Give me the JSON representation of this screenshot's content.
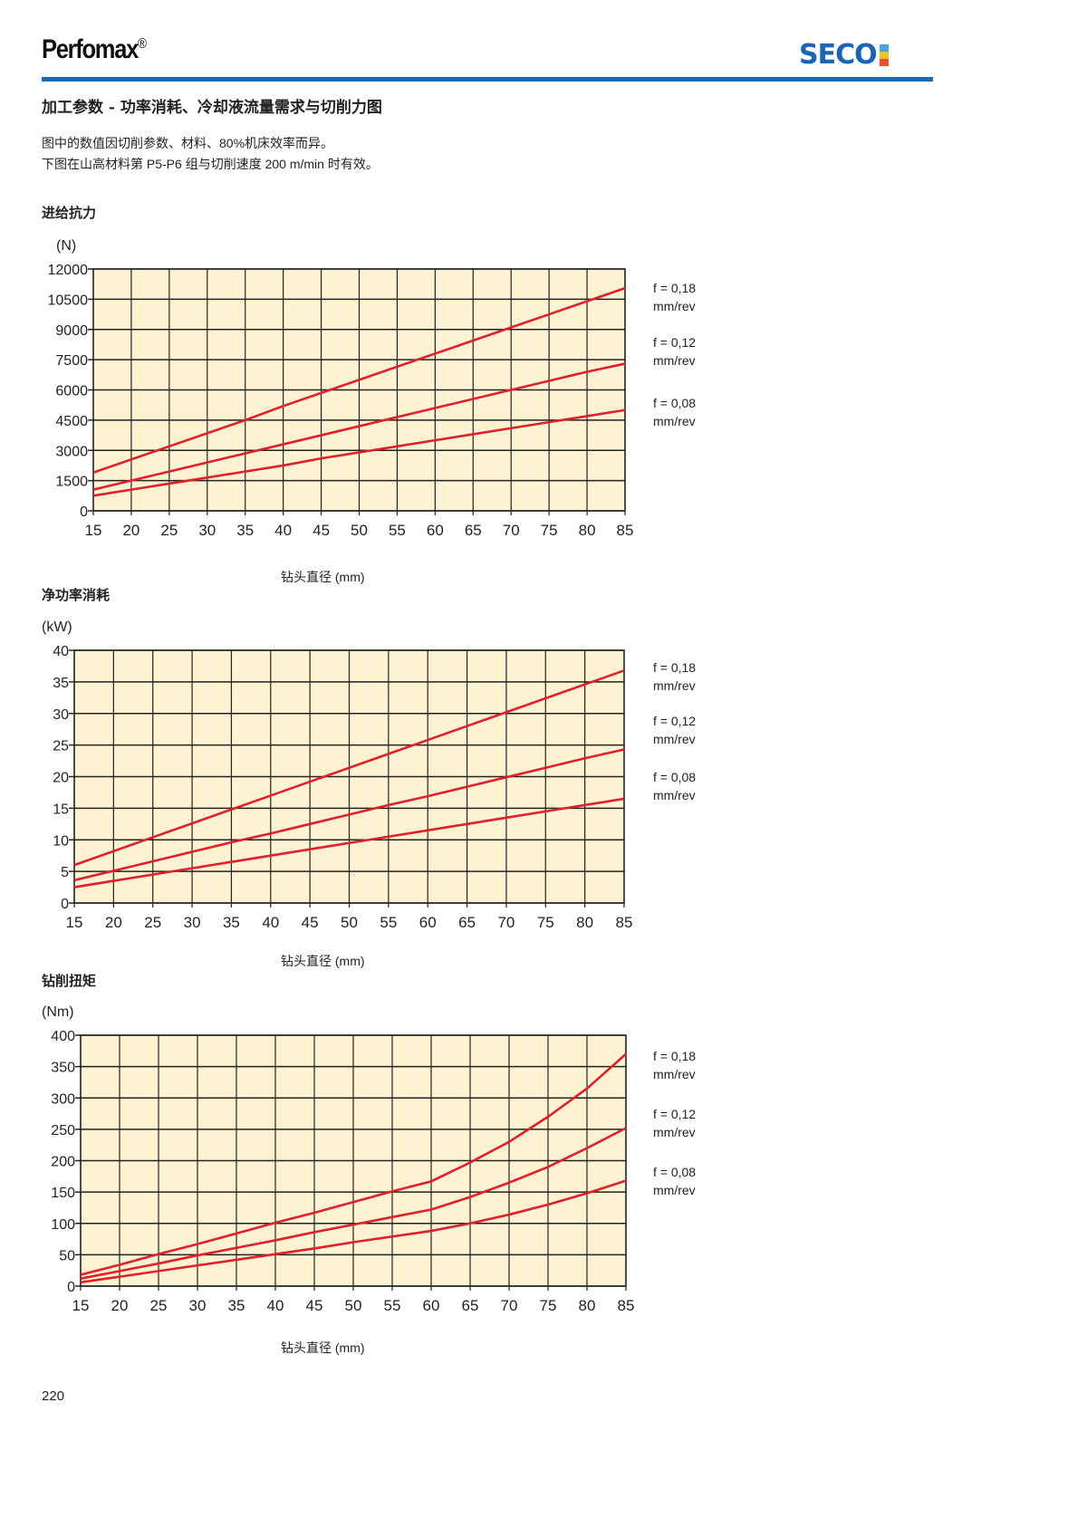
{
  "header": {
    "brand": "Perfomax",
    "brand_mark": "®",
    "logo_text": "SECO"
  },
  "section_title": "加工参数 - 功率消耗、冷却液流量需求与切削力图",
  "notes": [
    "图中的数值因切削参数、材料、80%机床效率而异。",
    "下图在山高材料第 P5-P6 组与切削速度 200 m/min 时有效。"
  ],
  "page_number": "220",
  "colors": {
    "plot_bg": "#fdf3d3",
    "line": "#e0202a",
    "grid": "#222222",
    "rule": "#1a6ab8"
  },
  "chart_data": [
    {
      "type": "line",
      "title": "进给抗力",
      "ylabel": "(N)",
      "xlabel": "钻头直径 (mm)",
      "ylim": [
        0,
        12000
      ],
      "xlim": [
        15,
        85
      ],
      "grid": true,
      "legend": "right",
      "yticks": [
        0,
        1500,
        3000,
        4500,
        6000,
        7500,
        9000,
        10500,
        12000
      ],
      "x": [
        15,
        20,
        25,
        30,
        35,
        40,
        45,
        50,
        55,
        60,
        65,
        70,
        75,
        80,
        85
      ],
      "series": [
        {
          "name": "f = 0,18 mm/rev",
          "label_lines": [
            "f = 0,18",
            "mm/rev"
          ],
          "values": [
            1900,
            2550,
            3200,
            3850,
            4500,
            5200,
            5850,
            6500,
            7150,
            7800,
            8450,
            9100,
            9750,
            10400,
            11050
          ]
        },
        {
          "name": "f = 0,12 mm/rev",
          "label_lines": [
            "f = 0,12",
            "mm/rev"
          ],
          "values": [
            1050,
            1500,
            1950,
            2400,
            2850,
            3300,
            3750,
            4200,
            4650,
            5100,
            5550,
            6000,
            6450,
            6900,
            7300
          ]
        },
        {
          "name": "f = 0,08 mm/rev",
          "label_lines": [
            "f = 0,08",
            "mm/rev"
          ],
          "values": [
            750,
            1050,
            1350,
            1650,
            1950,
            2250,
            2600,
            2900,
            3200,
            3500,
            3800,
            4100,
            4400,
            4700,
            5000
          ]
        }
      ]
    },
    {
      "type": "line",
      "title": "净功率消耗",
      "ylabel": "(kW)",
      "xlabel": "钻头直径 (mm)",
      "ylim": [
        0,
        40
      ],
      "xlim": [
        15,
        85
      ],
      "grid": true,
      "legend": "right",
      "yticks": [
        0,
        5,
        10,
        15,
        20,
        25,
        30,
        35,
        40
      ],
      "x": [
        15,
        20,
        25,
        30,
        35,
        40,
        45,
        50,
        55,
        60,
        65,
        70,
        75,
        80,
        85
      ],
      "series": [
        {
          "name": "f = 0,18 mm/rev",
          "label_lines": [
            "f = 0,18",
            "mm/rev"
          ],
          "values": [
            6,
            8.2,
            10.4,
            12.6,
            14.8,
            17,
            19.2,
            21.4,
            23.6,
            25.8,
            28,
            30.2,
            32.4,
            34.6,
            36.8
          ]
        },
        {
          "name": "f = 0,12 mm/rev",
          "label_lines": [
            "f = 0,12",
            "mm/rev"
          ],
          "values": [
            3.6,
            5.1,
            6.6,
            8.1,
            9.6,
            11,
            12.5,
            14,
            15.5,
            16.9,
            18.4,
            19.9,
            21.4,
            22.9,
            24.3
          ]
        },
        {
          "name": "f = 0,08 mm/rev",
          "label_lines": [
            "f = 0,08",
            "mm/rev"
          ],
          "values": [
            2.5,
            3.5,
            4.5,
            5.5,
            6.5,
            7.5,
            8.5,
            9.5,
            10.5,
            11.5,
            12.5,
            13.5,
            14.5,
            15.5,
            16.5
          ]
        }
      ]
    },
    {
      "type": "line",
      "title": "钻削扭矩",
      "ylabel": "(Nm)",
      "xlabel": "钻头直径 (mm)",
      "ylim": [
        0,
        400
      ],
      "xlim": [
        15,
        85
      ],
      "grid": true,
      "legend": "right",
      "yticks": [
        0,
        50,
        100,
        150,
        200,
        250,
        300,
        350,
        400
      ],
      "x": [
        15,
        20,
        25,
        30,
        35,
        40,
        45,
        50,
        55,
        60,
        65,
        70,
        75,
        80,
        85
      ],
      "series": [
        {
          "name": "f = 0,18 mm/rev",
          "label_lines": [
            "f = 0,18",
            "mm/rev"
          ],
          "values": [
            18,
            34,
            51,
            67,
            84,
            101,
            117,
            134,
            151,
            167,
            197,
            230,
            270,
            315,
            370
          ]
        },
        {
          "name": "f = 0,12 mm/rev",
          "label_lines": [
            "f = 0,12",
            "mm/rev"
          ],
          "values": [
            12,
            24,
            36,
            49,
            61,
            73,
            86,
            98,
            110,
            122,
            142,
            165,
            190,
            220,
            252
          ]
        },
        {
          "name": "f = 0,08 mm/rev",
          "label_lines": [
            "f = 0,08",
            "mm/rev"
          ],
          "values": [
            6,
            15,
            24,
            33,
            42,
            51,
            60,
            70,
            79,
            88,
            100,
            114,
            130,
            148,
            168
          ]
        }
      ]
    }
  ]
}
